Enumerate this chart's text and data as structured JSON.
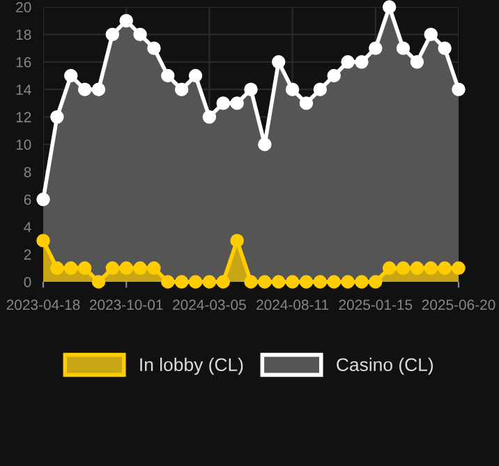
{
  "chart_data": {
    "type": "area",
    "categories": [
      "2023-04-18",
      null,
      null,
      null,
      null,
      null,
      "2023-10-01",
      null,
      null,
      null,
      null,
      null,
      "2024-03-05",
      null,
      null,
      null,
      null,
      null,
      "2024-08-11",
      null,
      null,
      null,
      null,
      null,
      "2025-01-15",
      null,
      null,
      null,
      null,
      null,
      "2025-06-20"
    ],
    "series": [
      {
        "name": "In lobby (CL)",
        "color": "#ffcc00",
        "values": [
          3,
          1,
          1,
          1,
          0,
          1,
          1,
          1,
          1,
          0,
          0,
          0,
          0,
          0,
          3,
          0,
          0,
          0,
          0,
          0,
          0,
          0,
          0,
          0,
          0,
          1,
          1,
          1,
          1,
          1,
          1
        ]
      },
      {
        "name": "Casino (CL)",
        "color": "#ffffff",
        "values": [
          6,
          12,
          15,
          14,
          14,
          18,
          19,
          18,
          17,
          15,
          14,
          15,
          12,
          13,
          13,
          14,
          10,
          16,
          14,
          13,
          14,
          15,
          16,
          16,
          17,
          20,
          17,
          16,
          18,
          17,
          14
        ]
      }
    ],
    "ylim": [
      0,
      20
    ],
    "yticks": [
      0,
      2,
      4,
      6,
      8,
      10,
      12,
      14,
      16,
      18,
      20
    ],
    "grid": true,
    "legend": "bottom",
    "marker": "circle",
    "line_style": "solid"
  }
}
